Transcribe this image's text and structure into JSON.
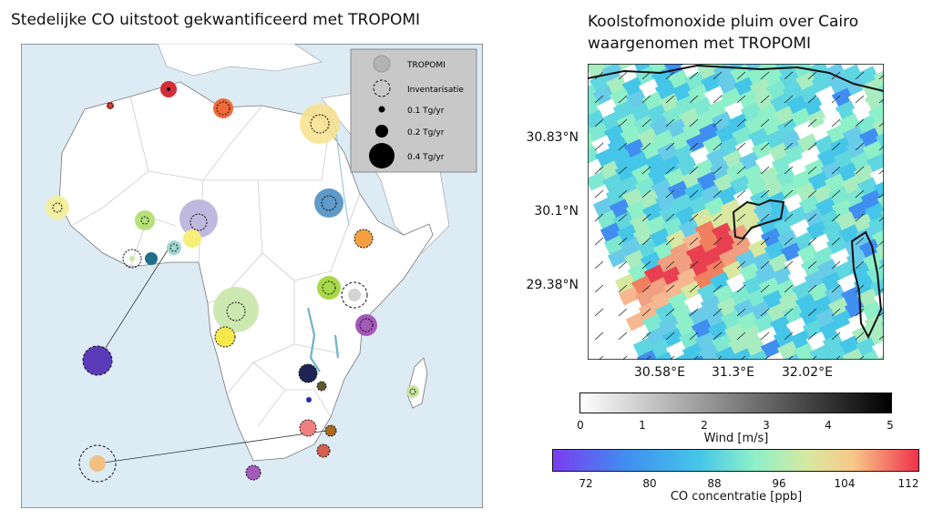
{
  "left_panel": {
    "title": "Stedelijke CO uitstoot gekwantificeerd met TROPOMI",
    "legend": {
      "tropomi": "TROPOMI",
      "inventory": "Inventarisatie",
      "size_1": "0.1 Tg/yr",
      "size_2": "0.2 Tg/yr",
      "size_3": "0.4 Tg/yr"
    }
  },
  "right_panel": {
    "title_line1": "Koolstofmonoxide pluim over Cairo",
    "title_line2": "waargenomen met TROPOMI",
    "lat_ticks": [
      "30.83°N",
      "30.1°N",
      "29.38°N"
    ],
    "lon_ticks": [
      "30.58°E",
      "31.3°E",
      "32.02°E"
    ]
  },
  "wind_colorbar": {
    "label": "Wind [m/s]",
    "ticks": [
      "0",
      "1",
      "2",
      "3",
      "4",
      "5"
    ]
  },
  "co_colorbar": {
    "label": "CO concentratie [ppb]",
    "ticks": [
      "72",
      "80",
      "88",
      "96",
      "104",
      "112"
    ]
  },
  "colors": {
    "ocean": "#dcebf4",
    "land": "#ffffff",
    "tropomi_legend": "#b3b3b3",
    "co_low": "#7b3cf0",
    "co_mid": "#8ef0c8",
    "co_high": "#f0304a"
  }
}
